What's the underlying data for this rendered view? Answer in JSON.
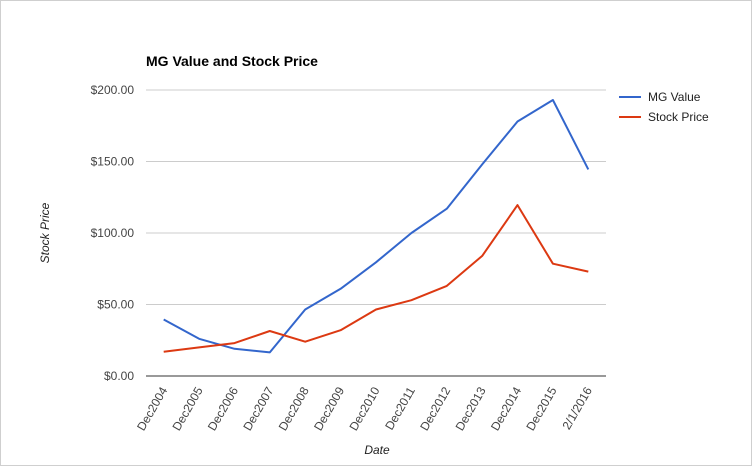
{
  "chart_data": {
    "type": "line",
    "title": "MG Value and Stock Price",
    "xlabel": "Date",
    "ylabel": "Stock Price",
    "categories": [
      "Dec2004",
      "Dec2005",
      "Dec2006",
      "Dec2007",
      "Dec2008",
      "Dec2009",
      "Dec2010",
      "Dec2011",
      "Dec2012",
      "Dec2013",
      "Dec2014",
      "Dec2015",
      "2/1/2016"
    ],
    "y_ticks": [
      "$0.00",
      "$50.00",
      "$100.00",
      "$150.00",
      "$200.00"
    ],
    "ylim": [
      0,
      200
    ],
    "grid": true,
    "legend_position": "right",
    "series": [
      {
        "name": "MG Value",
        "color": "#3366cc",
        "values": [
          39.5,
          26,
          19,
          16.5,
          46.5,
          61,
          79.5,
          100,
          117,
          148,
          178,
          193,
          144.5
        ]
      },
      {
        "name": "Stock Price",
        "color": "#dc3912",
        "values": [
          17,
          20,
          23,
          31.5,
          24,
          32,
          46.5,
          53,
          63,
          84,
          119.5,
          78.5,
          73
        ]
      }
    ]
  }
}
